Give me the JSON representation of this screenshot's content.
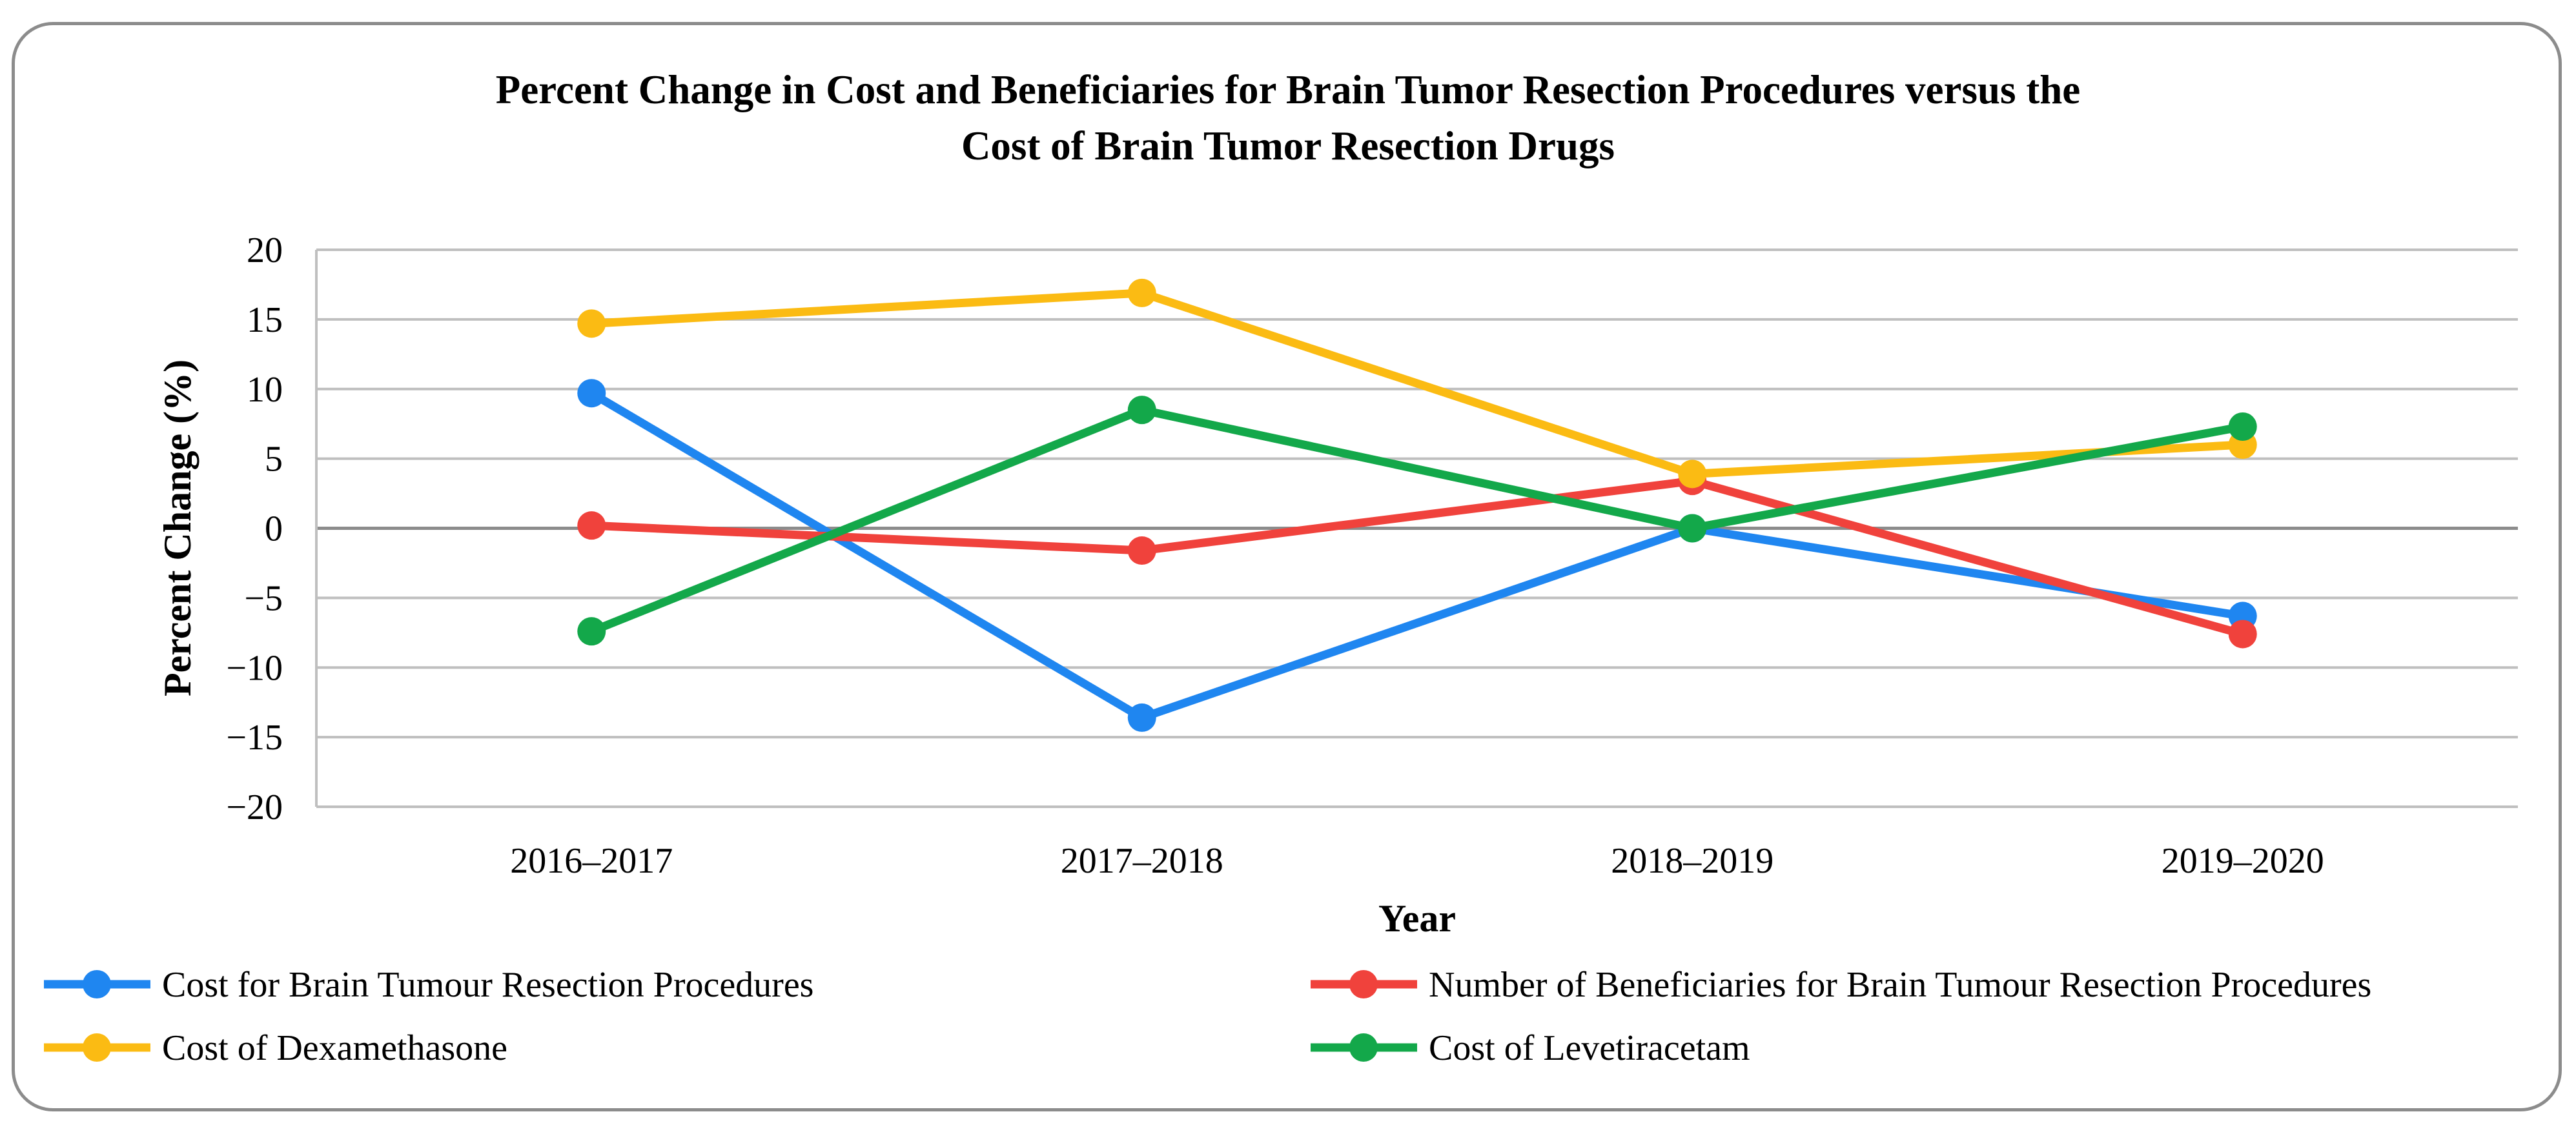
{
  "chart_data": {
    "type": "line",
    "title_lines": [
      "Percent Change in Cost and Beneficiaries for Brain Tumor Resection Procedures versus the",
      "Cost of Brain Tumor Resection Drugs"
    ],
    "xlabel": "Year",
    "ylabel": "Percent Change (%)",
    "categories": [
      "2016–2017",
      "2017–2018",
      "2018–2019",
      "2019–2020"
    ],
    "ylim": [
      -20,
      20
    ],
    "yticks": [
      20,
      15,
      10,
      5,
      0,
      -5,
      -10,
      -15,
      -20
    ],
    "ytick_labels": [
      "20",
      "15",
      "10",
      "5",
      "0",
      "−5",
      "−10",
      "−15",
      "−20"
    ],
    "grid": true,
    "legend_position": "bottom",
    "series": [
      {
        "name": "Cost for Brain Tumour Resection Procedures",
        "color": "#1f86f0",
        "values": [
          9.7,
          -13.6,
          0.0,
          -6.3
        ]
      },
      {
        "name": "Number of Beneficiaries for Brain Tumour Resection Procedures",
        "color": "#f0423c",
        "values": [
          0.2,
          -1.6,
          3.4,
          -7.6
        ]
      },
      {
        "name": "Cost of Dexamethasone",
        "color": "#fbbb13",
        "values": [
          14.7,
          16.9,
          3.9,
          6.0
        ]
      },
      {
        "name": "Cost of Levetiracetam",
        "color": "#13a84a",
        "values": [
          -7.4,
          8.5,
          0.0,
          7.3
        ]
      }
    ]
  }
}
